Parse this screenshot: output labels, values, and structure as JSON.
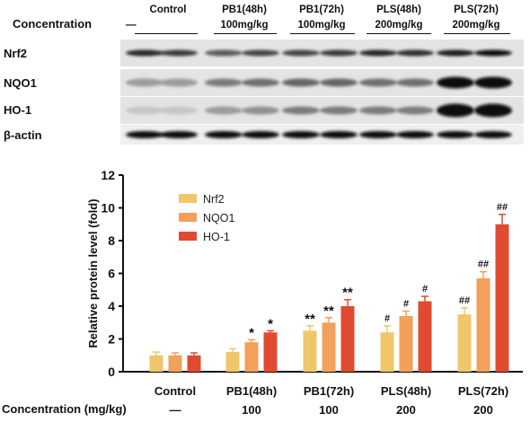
{
  "blot": {
    "header_label": "Concentration",
    "groups": [
      {
        "name": "Control",
        "dose": "—"
      },
      {
        "name": "PB1(48h)",
        "dose": "100mg/kg"
      },
      {
        "name": "PB1(72h)",
        "dose": "100mg/kg"
      },
      {
        "name": "PLS(48h)",
        "dose": "200mg/kg"
      },
      {
        "name": "PLS(72h)",
        "dose": "200mg/kg"
      }
    ],
    "rows": [
      {
        "label": "Nrf2"
      },
      {
        "label": "NQO1"
      },
      {
        "label": "HO-1"
      },
      {
        "label": "β-actin"
      }
    ]
  },
  "chart_data": {
    "type": "bar",
    "categories": [
      "Control",
      "PB1(48h)",
      "PB1(72h)",
      "PLS(48h)",
      "PLS(72h)"
    ],
    "series": [
      {
        "name": "Nrf2",
        "values": [
          1.0,
          1.2,
          2.5,
          2.4,
          3.5
        ],
        "errors": [
          0.2,
          0.2,
          0.3,
          0.4,
          0.4
        ],
        "annotations": [
          "",
          "",
          "**",
          "#",
          "##"
        ],
        "color": "#efc76a"
      },
      {
        "name": "NQO1",
        "values": [
          1.0,
          1.8,
          3.0,
          3.4,
          5.7
        ],
        "errors": [
          0.15,
          0.15,
          0.3,
          0.3,
          0.4
        ],
        "annotations": [
          "",
          "*",
          "**",
          "#",
          "##"
        ],
        "color": "#f2a05a"
      },
      {
        "name": "HO-1",
        "values": [
          1.0,
          2.4,
          4.0,
          4.3,
          9.0
        ],
        "errors": [
          0.15,
          0.1,
          0.4,
          0.3,
          0.6
        ],
        "annotations": [
          "",
          "*",
          "**",
          "#",
          "##"
        ],
        "color": "#e04a30"
      }
    ],
    "ylabel": "Relative protein level (fold)",
    "ylim": [
      0,
      12
    ],
    "yticks": [
      0,
      2,
      4,
      6,
      8,
      10,
      12
    ],
    "legend_position": "top-left",
    "x_row_label": "Concentration (mg/kg)",
    "doses": [
      "—",
      "100",
      "100",
      "200",
      "200"
    ]
  }
}
